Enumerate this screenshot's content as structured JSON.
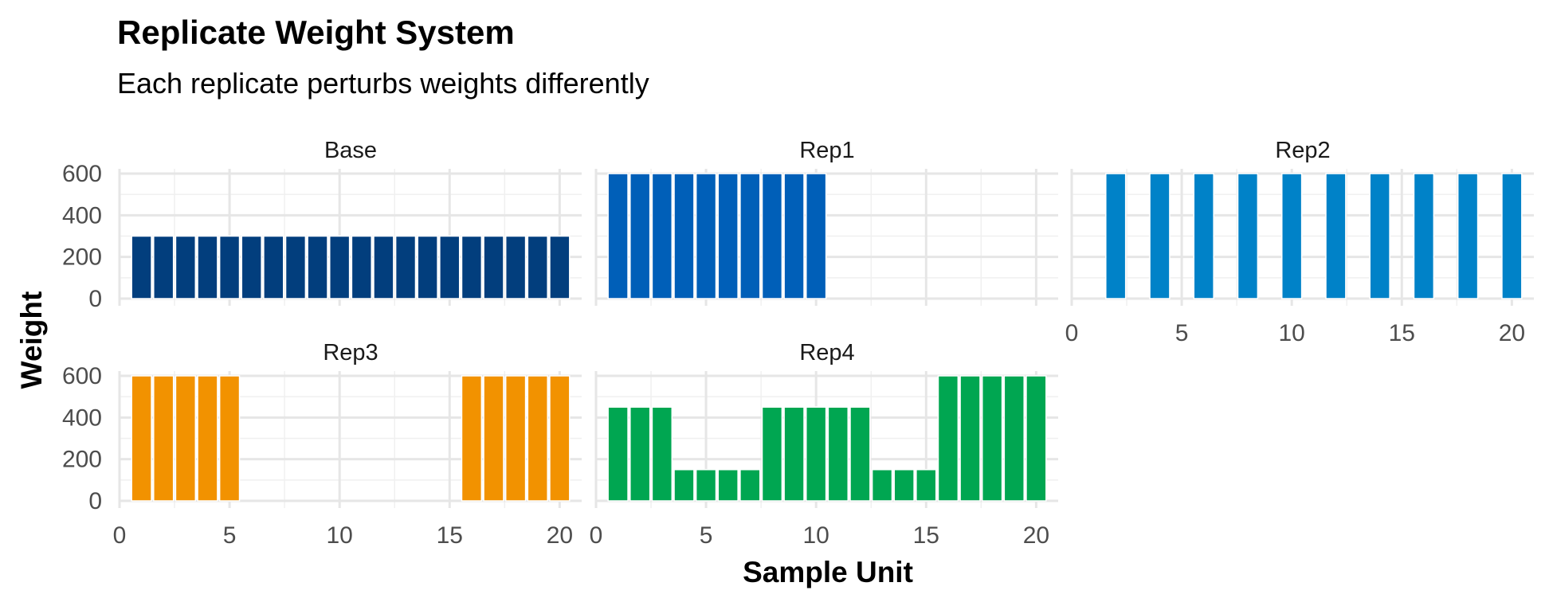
{
  "chart_data": {
    "type": "bar",
    "title": "Replicate Weight System",
    "subtitle": "Each replicate perturbs weights differently",
    "xlabel": "Sample Unit",
    "ylabel": "Weight",
    "xlim": [
      0,
      21
    ],
    "ylim": [
      0,
      600
    ],
    "x_ticks": [
      0,
      5,
      10,
      15,
      20
    ],
    "y_ticks": [
      0,
      200,
      400,
      600
    ],
    "grid": true,
    "legend": "none",
    "panels": [
      {
        "name": "Base",
        "color": "#023e7d",
        "x": [
          1,
          2,
          3,
          4,
          5,
          6,
          7,
          8,
          9,
          10,
          11,
          12,
          13,
          14,
          15,
          16,
          17,
          18,
          19,
          20
        ],
        "values": [
          300,
          300,
          300,
          300,
          300,
          300,
          300,
          300,
          300,
          300,
          300,
          300,
          300,
          300,
          300,
          300,
          300,
          300,
          300,
          300
        ]
      },
      {
        "name": "Rep1",
        "color": "#005fb8",
        "x": [
          1,
          2,
          3,
          4,
          5,
          6,
          7,
          8,
          9,
          10,
          11,
          12,
          13,
          14,
          15,
          16,
          17,
          18,
          19,
          20
        ],
        "values": [
          600,
          600,
          600,
          600,
          600,
          600,
          600,
          600,
          600,
          600,
          0,
          0,
          0,
          0,
          0,
          0,
          0,
          0,
          0,
          0
        ]
      },
      {
        "name": "Rep2",
        "color": "#0082c8",
        "x": [
          1,
          2,
          3,
          4,
          5,
          6,
          7,
          8,
          9,
          10,
          11,
          12,
          13,
          14,
          15,
          16,
          17,
          18,
          19,
          20
        ],
        "values": [
          0,
          600,
          0,
          600,
          0,
          600,
          0,
          600,
          0,
          600,
          0,
          600,
          0,
          600,
          0,
          600,
          0,
          600,
          0,
          600
        ]
      },
      {
        "name": "Rep3",
        "color": "#f29200",
        "x": [
          1,
          2,
          3,
          4,
          5,
          6,
          7,
          8,
          9,
          10,
          11,
          12,
          13,
          14,
          15,
          16,
          17,
          18,
          19,
          20
        ],
        "values": [
          600,
          600,
          600,
          600,
          600,
          0,
          0,
          0,
          0,
          0,
          0,
          0,
          0,
          0,
          0,
          600,
          600,
          600,
          600,
          600
        ]
      },
      {
        "name": "Rep4",
        "color": "#00a651",
        "x": [
          1,
          2,
          3,
          4,
          5,
          6,
          7,
          8,
          9,
          10,
          11,
          12,
          13,
          14,
          15,
          16,
          17,
          18,
          19,
          20
        ],
        "values": [
          450,
          450,
          450,
          150,
          150,
          150,
          150,
          450,
          450,
          450,
          450,
          450,
          150,
          150,
          150,
          600,
          600,
          600,
          600,
          600
        ]
      }
    ]
  }
}
